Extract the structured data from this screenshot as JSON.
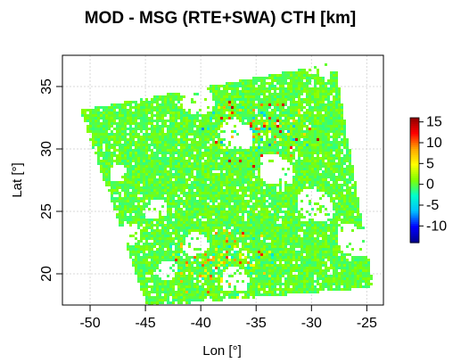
{
  "chart_data": {
    "type": "heatmap",
    "title": "MOD - MSG (RTE+SWA) CTH [km]",
    "xlabel": "Lon [°]",
    "ylabel": "Lat [°]",
    "xlim": [
      -52.5,
      -23.5
    ],
    "ylim": [
      17.5,
      37.5
    ],
    "x_ticks": [
      -50,
      -45,
      -40,
      -35,
      -30,
      -25
    ],
    "y_ticks": [
      20,
      25,
      30,
      35
    ],
    "x_tick_labels": [
      "-50",
      "-45",
      "-40",
      "-35",
      "-30",
      "-25"
    ],
    "y_tick_labels": [
      "20",
      "25",
      "30",
      "35"
    ],
    "grid": true,
    "colorbar": {
      "range": [
        -14,
        16
      ],
      "ticks": [
        15,
        10,
        5,
        0,
        -5,
        -10
      ],
      "tick_labels": [
        "15",
        "10",
        "5",
        "0",
        "-5",
        "-10"
      ],
      "colors": [
        "#00008B",
        "#0000FF",
        "#00BFFF",
        "#00FFCC",
        "#7FFF00",
        "#FFFF00",
        "#FFA500",
        "#FF0000",
        "#8B0000"
      ]
    },
    "swath_corners_lonlat": [
      [
        -51,
        33.2
      ],
      [
        -28,
        37
      ],
      [
        -24.5,
        19
      ],
      [
        -45,
        17.5
      ]
    ],
    "dominant_value": 0,
    "hotspot_regions": [
      {
        "lon": -35,
        "lat": 31.5,
        "value_range": [
          -8,
          15
        ]
      },
      {
        "lon": -38,
        "lat": 21,
        "value_range": [
          -5,
          12
        ]
      }
    ]
  }
}
